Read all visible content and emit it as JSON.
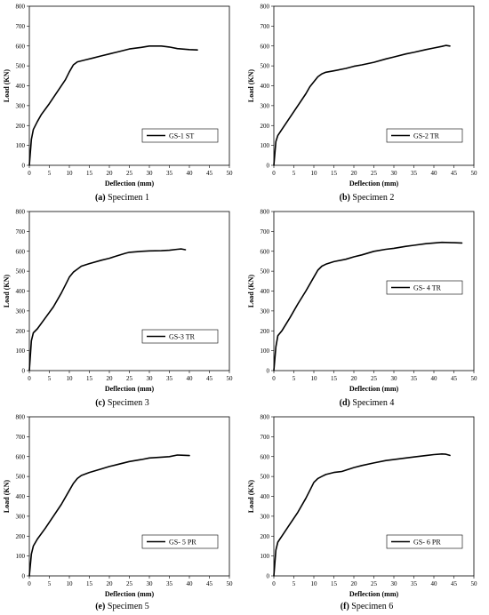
{
  "chart_data": [
    {
      "type": "line",
      "caption_letter": "(a)",
      "caption_text": " Specimen 1",
      "xlabel": "Deflection (mm)",
      "ylabel": "Load (KN)",
      "xlim": [
        0,
        50
      ],
      "ylim": [
        0,
        800
      ],
      "xticks": [
        "0",
        "5",
        "10",
        "15",
        "20",
        "25",
        "30",
        "35",
        "40",
        "45",
        "50"
      ],
      "yticks": [
        "0",
        "100",
        "200",
        "300",
        "400",
        "500",
        "600",
        "700",
        "800"
      ],
      "legend": "top-right-offset",
      "series": [
        {
          "name": "GS-1 ST",
          "x": [
            0,
            0.5,
            1,
            2,
            3,
            5,
            7,
            9,
            10,
            11,
            12,
            14,
            16,
            18,
            20,
            22,
            25,
            28,
            30,
            33,
            35,
            37,
            40,
            42
          ],
          "y": [
            0,
            130,
            180,
            220,
            255,
            310,
            370,
            430,
            470,
            505,
            520,
            530,
            540,
            550,
            560,
            570,
            585,
            593,
            600,
            600,
            595,
            587,
            582,
            580
          ]
        }
      ]
    },
    {
      "type": "line",
      "caption_letter": "(b)",
      "caption_text": " Specimen 2",
      "xlabel": "Deflection (mm)",
      "ylabel": "Load (KN)",
      "xlim": [
        0,
        50
      ],
      "ylim": [
        0,
        800
      ],
      "xticks": [
        "0",
        "5",
        "10",
        "15",
        "20",
        "25",
        "30",
        "35",
        "40",
        "45",
        "50"
      ],
      "yticks": [
        "0",
        "100",
        "200",
        "300",
        "400",
        "500",
        "600",
        "700",
        "800"
      ],
      "legend": "top-right-offset",
      "series": [
        {
          "name": "GS-2 TR",
          "x": [
            0,
            0.5,
            1,
            2,
            4,
            6,
            8,
            9,
            10,
            11,
            12,
            13,
            15,
            18,
            20,
            22,
            25,
            28,
            30,
            33,
            35,
            38,
            40,
            42,
            43,
            44
          ],
          "y": [
            0,
            120,
            150,
            180,
            240,
            300,
            360,
            395,
            420,
            445,
            460,
            468,
            475,
            487,
            498,
            505,
            518,
            535,
            545,
            560,
            568,
            582,
            590,
            598,
            603,
            600
          ]
        }
      ]
    },
    {
      "type": "line",
      "caption_letter": "(c)",
      "caption_text": " Specimen 3",
      "xlabel": "Deflection (mm)",
      "ylabel": "Load (KN)",
      "xlim": [
        0,
        50
      ],
      "ylim": [
        0,
        800
      ],
      "xticks": [
        "0",
        "5",
        "10",
        "15",
        "20",
        "25",
        "30",
        "35",
        "40",
        "45",
        "50"
      ],
      "yticks": [
        "0",
        "100",
        "200",
        "300",
        "400",
        "500",
        "600",
        "700",
        "800"
      ],
      "legend": "bottom-right",
      "series": [
        {
          "name": "GS-3 TR",
          "x": [
            0,
            0.5,
            1,
            2,
            4,
            6,
            8,
            9,
            10,
            11,
            12,
            13,
            15,
            18,
            20,
            22,
            24,
            25,
            28,
            30,
            33,
            35,
            37,
            38,
            39
          ],
          "y": [
            0,
            150,
            190,
            210,
            265,
            320,
            390,
            430,
            470,
            495,
            510,
            525,
            538,
            555,
            565,
            578,
            590,
            595,
            600,
            602,
            603,
            605,
            610,
            612,
            608
          ]
        }
      ]
    },
    {
      "type": "line",
      "caption_letter": "(d)",
      "caption_text": " Specimen 4",
      "xlabel": "Deflection (mm)",
      "ylabel": "Load (KN)",
      "xlim": [
        0,
        50
      ],
      "ylim": [
        0,
        800
      ],
      "xticks": [
        "0",
        "5",
        "10",
        "15",
        "20",
        "25",
        "30",
        "35",
        "40",
        "45",
        "50"
      ],
      "yticks": [
        "0",
        "100",
        "200",
        "300",
        "400",
        "500",
        "600",
        "700",
        "800"
      ],
      "legend": "center-right",
      "series": [
        {
          "name": "GS- 4 TR",
          "x": [
            0,
            0.5,
            1,
            2,
            4,
            6,
            8,
            10,
            11,
            12,
            13,
            15,
            18,
            20,
            22,
            25,
            28,
            30,
            33,
            35,
            38,
            40,
            42,
            45,
            47
          ],
          "y": [
            0,
            120,
            175,
            200,
            265,
            335,
            400,
            470,
            505,
            525,
            535,
            548,
            560,
            572,
            582,
            600,
            610,
            615,
            625,
            630,
            638,
            642,
            645,
            643,
            642
          ]
        }
      ]
    },
    {
      "type": "line",
      "caption_letter": "(e)",
      "caption_text": " Specimen 5",
      "xlabel": "Deflection (mm)",
      "ylabel": "Load (KN)",
      "xlim": [
        0,
        50
      ],
      "ylim": [
        0,
        800
      ],
      "xticks": [
        "0",
        "5",
        "10",
        "15",
        "20",
        "25",
        "30",
        "35",
        "40",
        "45",
        "50"
      ],
      "yticks": [
        "0",
        "100",
        "200",
        "300",
        "400",
        "500",
        "600",
        "700",
        "800"
      ],
      "legend": "bottom-right",
      "series": [
        {
          "name": "GS- 5 PR",
          "x": [
            0,
            0.5,
            1,
            2,
            4,
            6,
            8,
            10,
            11,
            12,
            13,
            15,
            18,
            20,
            22,
            25,
            28,
            30,
            33,
            35,
            37,
            38,
            40
          ],
          "y": [
            0,
            110,
            150,
            185,
            240,
            300,
            360,
            430,
            465,
            490,
            505,
            520,
            538,
            550,
            560,
            575,
            585,
            593,
            597,
            600,
            608,
            607,
            605
          ]
        }
      ]
    },
    {
      "type": "line",
      "caption_letter": "(f)",
      "caption_text": " Specimen 6",
      "xlabel": "Deflection (mm)",
      "ylabel": "Load (KN)",
      "xlim": [
        0,
        50
      ],
      "ylim": [
        0,
        800
      ],
      "xticks": [
        "0",
        "5",
        "10",
        "15",
        "20",
        "25",
        "30",
        "35",
        "40",
        "45",
        "50"
      ],
      "yticks": [
        "0",
        "100",
        "200",
        "300",
        "400",
        "500",
        "600",
        "700",
        "800"
      ],
      "legend": "bottom-right",
      "series": [
        {
          "name": "GS- 6 PR",
          "x": [
            0,
            0.5,
            1,
            2,
            4,
            6,
            8,
            9,
            10,
            11,
            12,
            13,
            15,
            17,
            20,
            22,
            25,
            28,
            30,
            33,
            35,
            38,
            40,
            42,
            43,
            44
          ],
          "y": [
            0,
            130,
            170,
            200,
            260,
            320,
            390,
            430,
            470,
            490,
            500,
            510,
            520,
            525,
            545,
            555,
            568,
            580,
            585,
            593,
            598,
            605,
            610,
            613,
            612,
            606
          ]
        }
      ]
    }
  ]
}
